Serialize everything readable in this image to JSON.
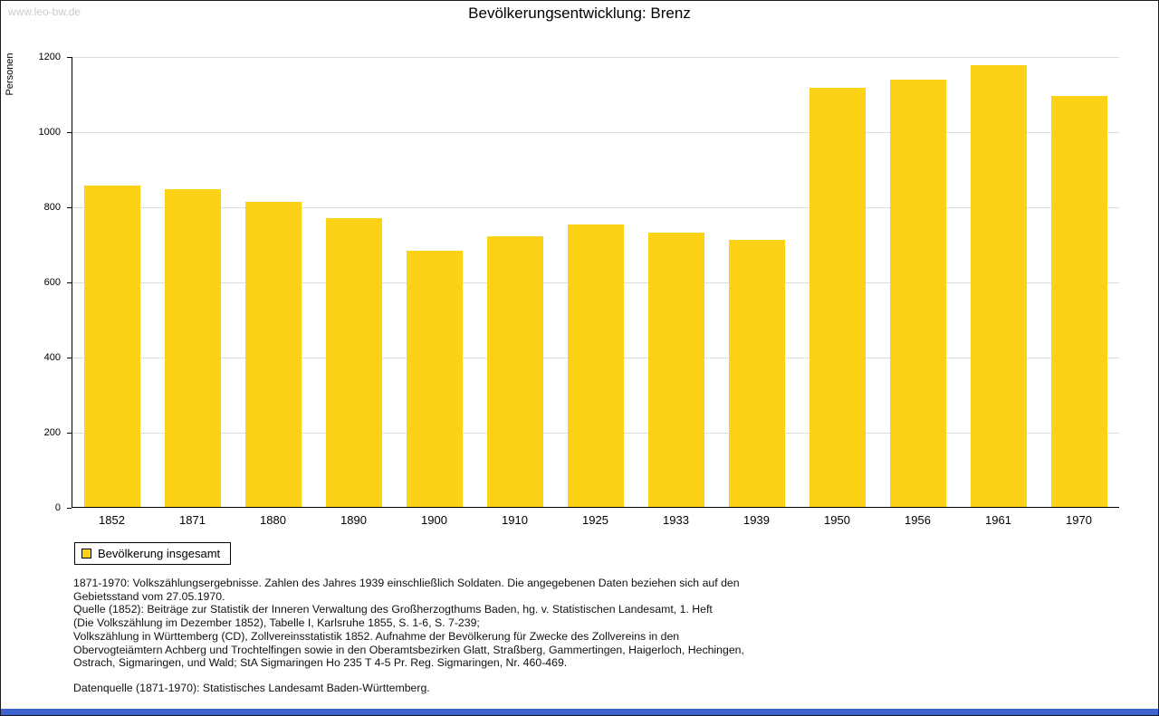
{
  "page": {
    "watermark": "www.leo-bw.de",
    "title": "Bevölkerungsentwicklung: Brenz",
    "bar_color": "#FCD116",
    "gridline_color": "#dcdcdc",
    "bottom_bar_color": "#3D64CE"
  },
  "chart_data": {
    "type": "bar",
    "title": "Bevölkerungsentwicklung: Brenz",
    "xlabel": "",
    "ylabel": "Personen",
    "ylim": [
      0,
      1200
    ],
    "ytick_interval": 200,
    "grid": true,
    "legend_position": "bottom-left",
    "categories": [
      "1852",
      "1871",
      "1880",
      "1890",
      "1900",
      "1910",
      "1925",
      "1933",
      "1939",
      "1950",
      "1956",
      "1961",
      "1970"
    ],
    "values": [
      856,
      845,
      813,
      768,
      683,
      720,
      752,
      731,
      712,
      1115,
      1138,
      1177,
      1093
    ],
    "series_name": "Bevölkerung insgesamt",
    "bar_color": "#FCD116"
  },
  "legend": {
    "label": "Bevölkerung insgesamt"
  },
  "footnotes": {
    "lines": [
      "1871-1970: Volkszählungsergebnisse. Zahlen des Jahres 1939 einschließlich Soldaten. Die angegebenen Daten beziehen sich auf den",
      "Gebietsstand vom 27.05.1970.",
      "Quelle (1852): Beiträge zur Statistik der Inneren Verwaltung des Großherzogthums Baden, hg. v. Statistischen Landesamt, 1. Heft",
      "(Die Volkszählung im Dezember 1852), Tabelle I, Karlsruhe 1855, S. 1-6, S. 7-239;",
      "Volkszählung in Württemberg (CD), Zollvereinsstatistik 1852. Aufnahme der Bevölkerung für Zwecke des Zollvereins in den",
      "Obervogteiämtern Achberg und Trochtelfingen sowie in den Oberamtsbezirken Glatt, Straßberg, Gammertingen, Haigerloch, Hechingen,",
      "Ostrach, Sigmaringen, und Wald; StA Sigmaringen Ho 235 T 4-5 Pr. Reg. Sigmaringen, Nr. 460-469."
    ],
    "datasource": "Datenquelle (1871-1970): Statistisches Landesamt Baden-Württemberg."
  }
}
